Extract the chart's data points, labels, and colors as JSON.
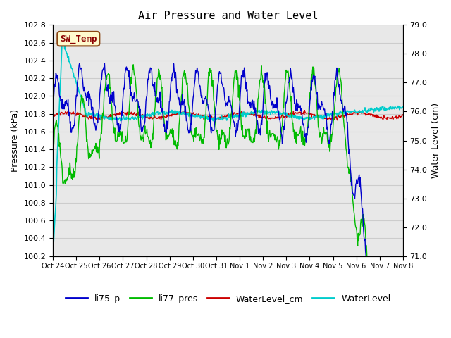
{
  "title": "Air Pressure and Water Level",
  "ylabel_left": "Pressure (kPa)",
  "ylabel_right": "Water Level (cm)",
  "ylim_left": [
    100.2,
    102.8
  ],
  "ylim_right": [
    71.0,
    79.0
  ],
  "yticks_left": [
    100.2,
    100.4,
    100.6,
    100.8,
    101.0,
    101.2,
    101.4,
    101.6,
    101.8,
    102.0,
    102.2,
    102.4,
    102.6,
    102.8
  ],
  "yticks_right": [
    71.0,
    72.0,
    73.0,
    74.0,
    75.0,
    76.0,
    77.0,
    78.0,
    79.0
  ],
  "xtick_labels": [
    "Oct 24",
    "Oct 25",
    "Oct 26",
    "Oct 27",
    "Oct 28",
    "Oct 29",
    "Oct 30",
    "Oct 31",
    "Nov 1",
    "Nov 2",
    "Nov 3",
    "Nov 4",
    "Nov 5",
    "Nov 6",
    "Nov 7",
    "Nov 8"
  ],
  "annotation_label": "SW_Temp",
  "annotation_color": "#8B0000",
  "annotation_bg": "#FFFACD",
  "annotation_border": "#8B4513",
  "line_li75_p_color": "#0000CC",
  "line_li77_pres_color": "#00BB00",
  "line_waterlevel_cm_color": "#CC0000",
  "line_waterlevel_color": "#00CCCC",
  "grid_color": "#CCCCCC",
  "bg_color": "#E8E8E8",
  "legend_labels": [
    "li75_p",
    "li77_pres",
    "WaterLevel_cm",
    "WaterLevel"
  ],
  "legend_colors": [
    "#0000CC",
    "#00BB00",
    "#CC0000",
    "#00CCCC"
  ]
}
